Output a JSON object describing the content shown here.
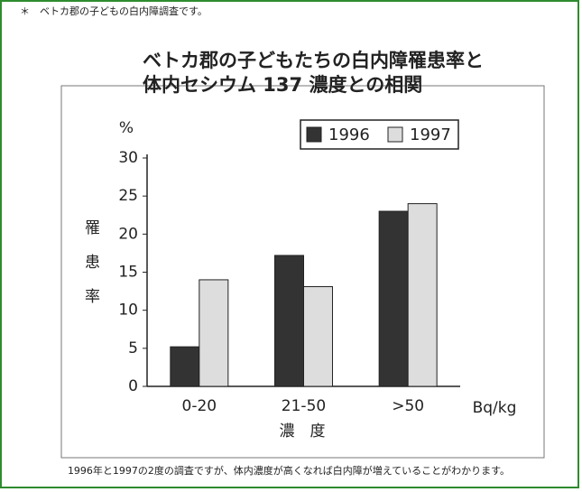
{
  "header_note": "＊　ベトカ郡の子どもの白内障調査です。",
  "caption": "1996年と1997の2度の調査ですが、体内濃度が高くなれば白内障が増えていることがわかります。",
  "chart_data": {
    "type": "bar",
    "title": [
      "ベトカ郡の子どもたちの白内障罹患率と",
      "体内セシウム 137 濃度との相関"
    ],
    "ylabel": "罹患率",
    "y_unit": "%",
    "xlabel": "濃　度",
    "x_unit": "Bq/kg",
    "categories": [
      "0-20",
      "21-50",
      ">50"
    ],
    "series": [
      {
        "name": "1996",
        "color": "#333333",
        "values": [
          5.2,
          17.2,
          23
        ]
      },
      {
        "name": "1997",
        "color": "#dddddd",
        "values": [
          14,
          13.1,
          24
        ]
      }
    ],
    "ylim": [
      0,
      30
    ],
    "yticks": [
      0,
      5,
      10,
      15,
      20,
      25,
      30
    ],
    "grid": false,
    "legend": "top-right"
  }
}
